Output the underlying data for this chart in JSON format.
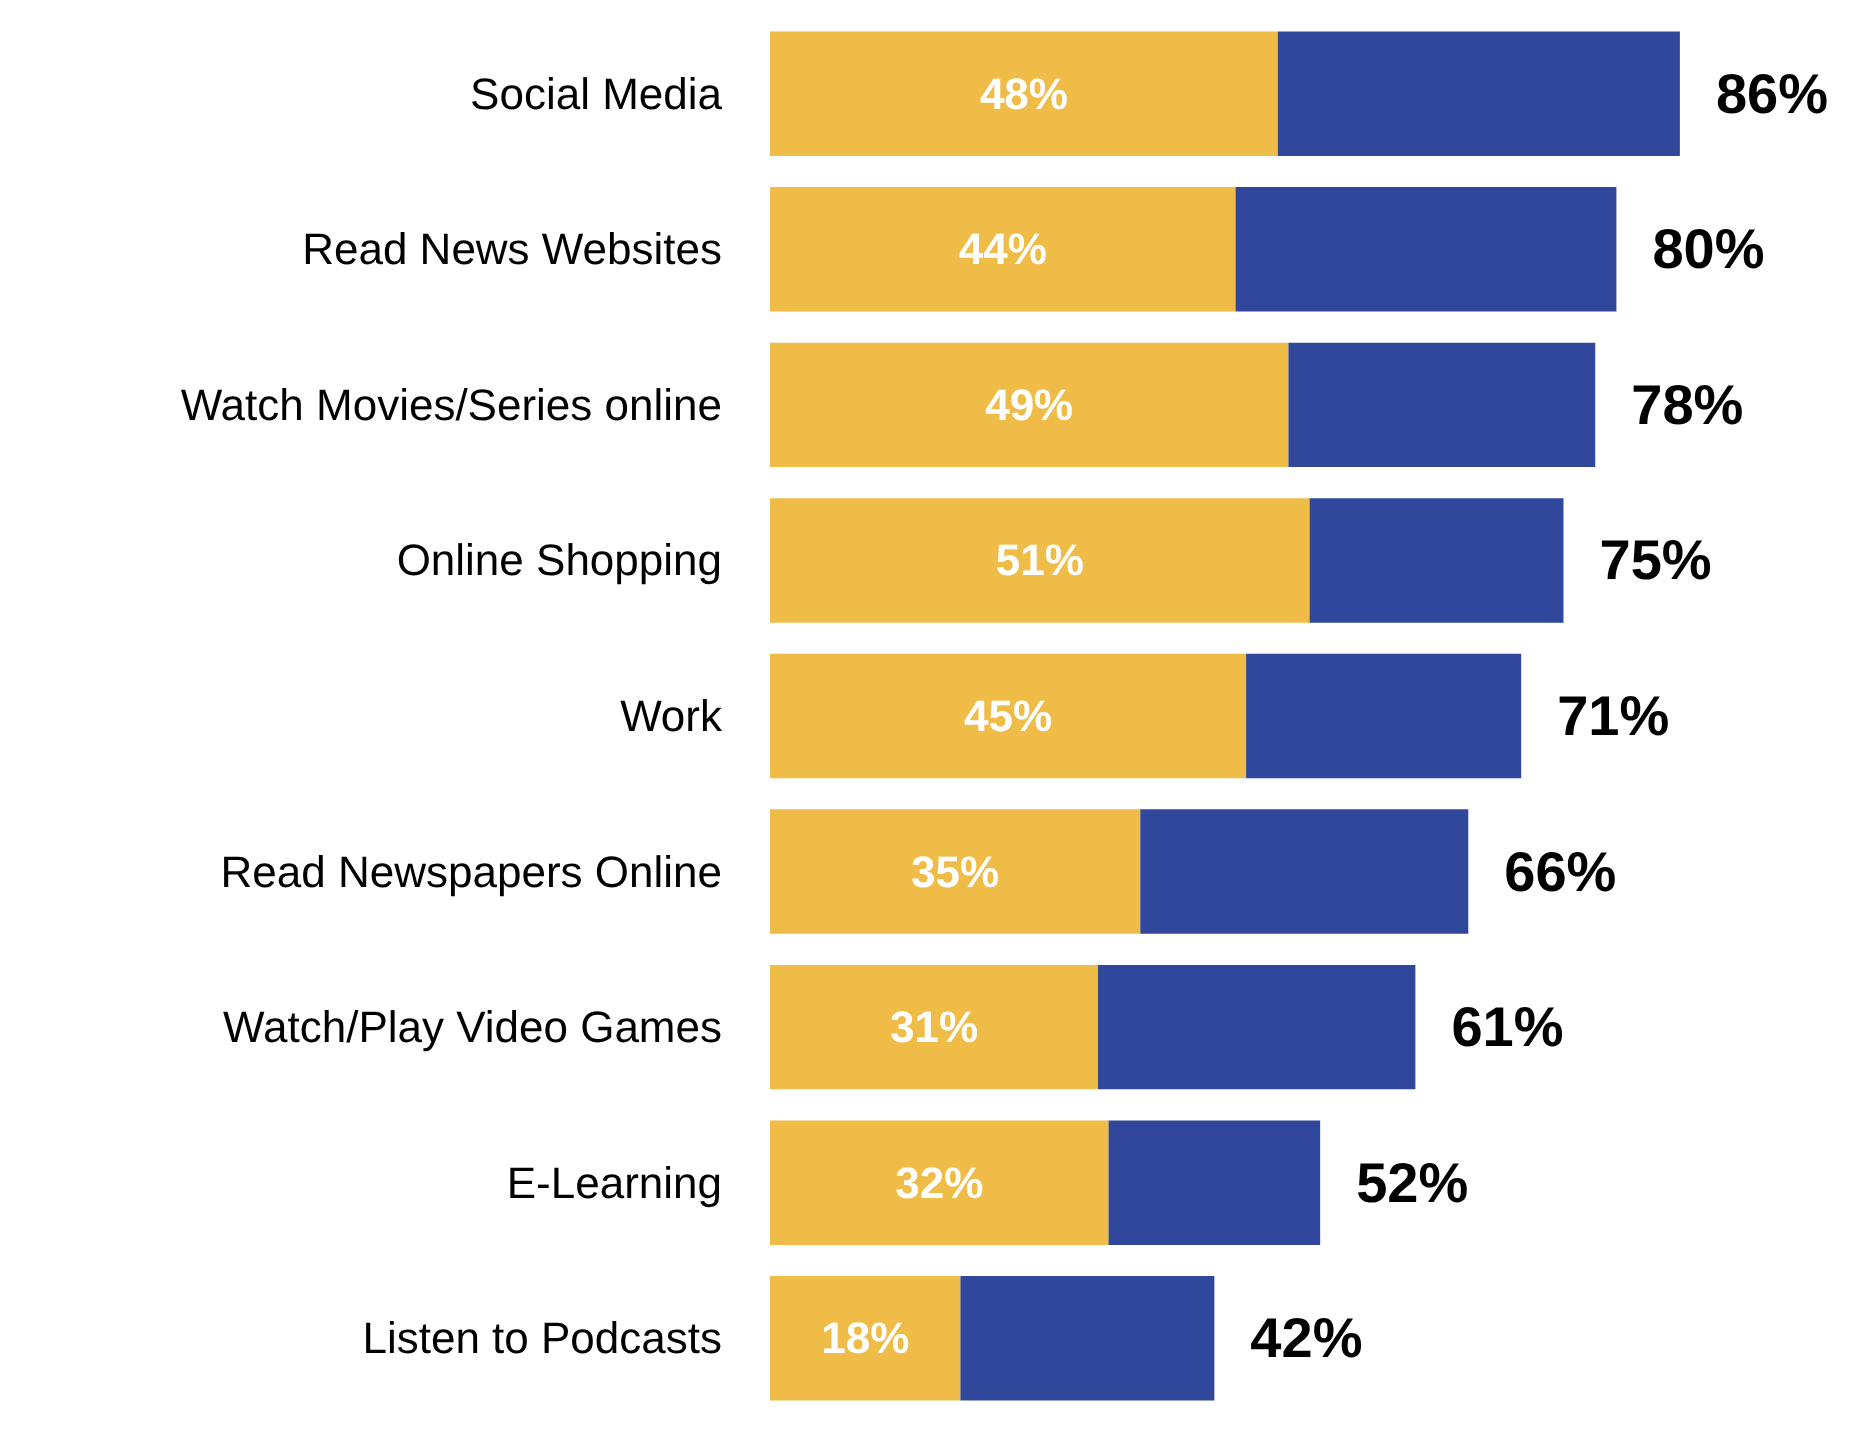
{
  "chart_data": {
    "type": "bar",
    "orientation": "horizontal",
    "stacked": true,
    "categories": [
      "Social Media",
      "Read News Websites",
      "Watch Movies/Series online",
      "Online Shopping",
      "Work",
      "Read Newspapers Online",
      "Watch/Play Video Games",
      "E-Learning",
      "Listen to Podcasts"
    ],
    "series": [
      {
        "color": "#f0bc48",
        "values": [
          48,
          44,
          49,
          51,
          45,
          35,
          31,
          32,
          18
        ],
        "value_labels": [
          "48%",
          "44%",
          "49%",
          "51%",
          "45%",
          "35%",
          "31%",
          "32%",
          "18%"
        ]
      },
      {
        "color": "#30479c",
        "values": [
          38,
          36,
          29,
          24,
          26,
          31,
          30,
          20,
          24
        ]
      }
    ],
    "totals": [
      "86%",
      "80%",
      "78%",
      "75%",
      "71%",
      "66%",
      "61%",
      "52%",
      "42%"
    ],
    "tick_labels": "y"
  }
}
